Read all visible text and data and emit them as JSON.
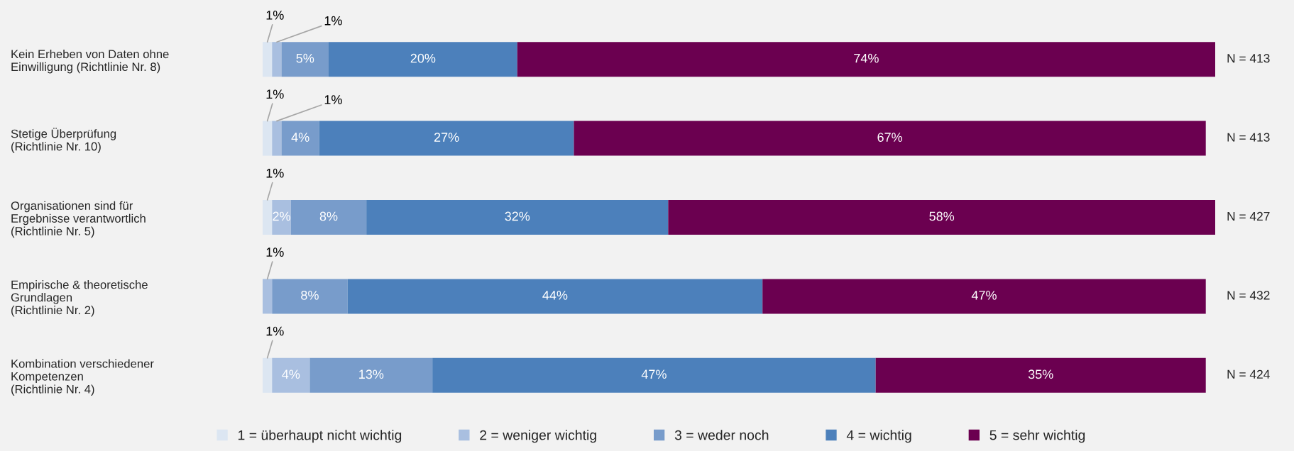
{
  "chart_data": {
    "type": "bar",
    "orientation": "horizontal",
    "stacked": true,
    "legend": "bottom",
    "categories": [
      "Kein Erheben von Daten ohne\nEinwilligung (Richtlinie Nr. 8)",
      "Stetige Überprüfung\n(Richtlinie Nr. 10)",
      "Organisationen sind für\nErgebnisse verantwortlich\n(Richtlinie Nr. 5)",
      "Empirische & theoretische\nGrundlagen\n(Richtlinie Nr. 2)",
      "Kombination verschiedener\nKompetenzen\n(Richtlinie Nr. 4)"
    ],
    "series": [
      {
        "name": "1 = überhaupt nicht wichtig",
        "color": "#dce6f2",
        "values": [
          1,
          1,
          1,
          0,
          1
        ],
        "value_labels": [
          "1%",
          "1%",
          "1%",
          null,
          "1%"
        ]
      },
      {
        "name": "2 = weniger wichtig",
        "color": "#a9bfe0",
        "values": [
          1,
          1,
          2,
          1,
          4
        ],
        "value_labels": [
          "1%",
          "1%",
          "2%",
          "1%",
          "4%"
        ]
      },
      {
        "name": "3 = weder noch",
        "color": "#789ccb",
        "values": [
          5,
          4,
          8,
          8,
          13
        ],
        "value_labels": [
          "5%",
          "4%",
          "8%",
          "8%",
          "13%"
        ]
      },
      {
        "name": "4 = wichtig",
        "color": "#4c80bb",
        "values": [
          20,
          27,
          32,
          44,
          47
        ],
        "value_labels": [
          "20%",
          "27%",
          "32%",
          "44%",
          "47%"
        ]
      },
      {
        "name": "5 = sehr wichtig",
        "color": "#6b0050",
        "values": [
          74,
          67,
          58,
          47,
          35
        ],
        "value_labels": [
          "74%",
          "67%",
          "58%",
          "47%",
          "35%"
        ]
      }
    ],
    "annotations": [
      "N = 413",
      "N = 413",
      "N = 427",
      "N = 432",
      "N = 424"
    ]
  }
}
